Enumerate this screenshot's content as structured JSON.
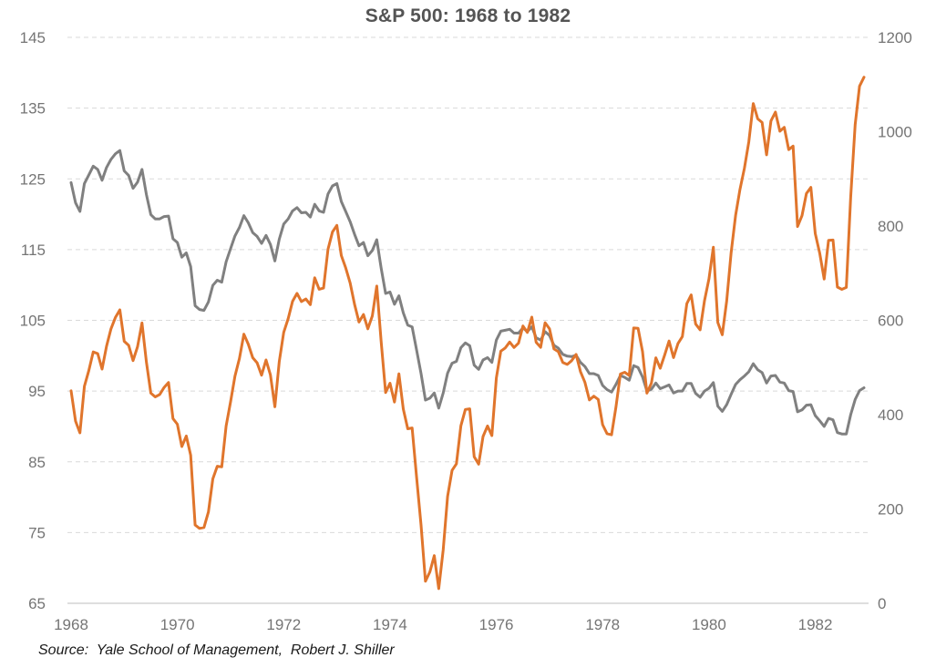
{
  "title": "S&P 500: 1968 to 1982",
  "source": "Source:  Yale School of Management,  Robert J. Shiller",
  "colors": {
    "orange_line": "#E0752C",
    "gray_line": "#808080",
    "gridline": "#D9D9D9",
    "axis_line": "#C9C9C9",
    "tick_label": "#757575",
    "title_text": "#545454",
    "source_text": "#1A1A1A",
    "background": "#FFFFFF"
  },
  "chart_data": {
    "type": "line",
    "title": "S&P 500: 1968 to 1982",
    "subtitle": "",
    "legend": "none",
    "grid": "horizontal-dashed",
    "x_start_year": 1968,
    "x_frequency": "monthly",
    "x_axis": {
      "tick_labels": [
        "1968",
        "1970",
        "1972",
        "1974",
        "1976",
        "1978",
        "1980",
        "1982"
      ],
      "tick_month_index": [
        0,
        24,
        48,
        72,
        96,
        120,
        144,
        168
      ]
    },
    "left_axis": {
      "min": 65,
      "max": 145,
      "ticks": [
        65,
        75,
        85,
        95,
        105,
        115,
        125,
        135,
        145
      ]
    },
    "right_axis": {
      "min": 0,
      "max": 1200,
      "ticks": [
        0,
        200,
        400,
        600,
        800,
        1000,
        1200
      ]
    },
    "series": [
      {
        "name": "gray-series",
        "axis": "right",
        "color_key": "gray_line",
        "values": [
          892,
          849,
          831,
          890,
          908,
          927,
          920,
          897,
          924,
          941,
          953,
          960,
          917,
          907,
          880,
          893,
          920,
          867,
          824,
          815,
          815,
          820,
          821,
          773,
          765,
          734,
          743,
          714,
          631,
          623,
          621,
          639,
          674,
          685,
          681,
          724,
          752,
          779,
          797,
          822,
          807,
          786,
          778,
          763,
          780,
          761,
          726,
          772,
          804,
          815,
          832,
          839,
          828,
          829,
          819,
          846,
          832,
          829,
          868,
          885,
          890,
          852,
          831,
          809,
          782,
          758,
          765,
          737,
          748,
          771,
          711,
          657,
          660,
          634,
          652,
          616,
          590,
          586,
          537,
          487,
          431,
          435,
          446,
          414,
          446,
          488,
          509,
          513,
          542,
          552,
          546,
          505,
          496,
          516,
          521,
          511,
          558,
          577,
          579,
          581,
          573,
          573,
          584,
          576,
          586,
          563,
          558,
          576,
          568,
          547,
          541,
          528,
          524,
          523,
          526,
          511,
          502,
          487,
          487,
          483,
          462,
          453,
          448,
          464,
          483,
          479,
          473,
          504,
          500,
          480,
          450,
          454,
          467,
          455,
          459,
          463,
          446,
          450,
          450,
          466,
          466,
          445,
          437,
          450,
          456,
          468,
          418,
          407,
          421,
          443,
          464,
          474,
          482,
          491,
          508,
          495,
          489,
          467,
          482,
          483,
          469,
          467,
          451,
          449,
          406,
          410,
          420,
          421,
          398,
          387,
          375,
          392,
          389,
          362,
          359,
          359,
          400,
          432,
          451,
          457
        ]
      },
      {
        "name": "orange-series",
        "axis": "left",
        "color_key": "orange_line",
        "values": [
          95.04,
          90.75,
          89.09,
          95.67,
          97.87,
          100.53,
          100.3,
          98.11,
          101.34,
          103.76,
          105.4,
          106.48,
          102.04,
          101.46,
          99.3,
          101.26,
          104.62,
          99.14,
          94.71,
          94.18,
          94.51,
          95.52,
          96.21,
          91.11,
          90.31,
          87.16,
          88.65,
          85.95,
          76.06,
          75.59,
          75.72,
          77.92,
          82.58,
          84.37,
          84.28,
          90.05,
          93.49,
          97.11,
          99.6,
          103.04,
          101.64,
          99.72,
          99.0,
          97.24,
          99.4,
          97.29,
          92.78,
          99.17,
          103.3,
          105.24,
          107.69,
          108.81,
          107.65,
          108.01,
          107.21,
          111.01,
          109.39,
          109.56,
          115.05,
          117.5,
          118.42,
          114.16,
          112.42,
          110.27,
          107.22,
          104.75,
          105.83,
          103.8,
          105.61,
          109.84,
          102.03,
          94.78,
          96.11,
          93.45,
          97.44,
          92.46,
          89.67,
          89.79,
          82.82,
          76.03,
          68.12,
          69.44,
          71.74,
          67.07,
          72.56,
          80.1,
          83.78,
          84.72,
          90.1,
          92.4,
          92.49,
          85.71,
          84.67,
          88.57,
          90.07,
          88.7,
          96.86,
          100.64,
          101.08,
          101.93,
          101.16,
          101.77,
          104.2,
          103.29,
          105.45,
          101.89,
          101.19,
          104.66,
          103.81,
          100.96,
          100.57,
          99.05,
          98.76,
          99.29,
          100.18,
          97.75,
          96.23,
          93.74,
          94.28,
          93.82,
          90.25,
          88.98,
          88.82,
          92.71,
          97.41,
          97.66,
          97.19,
          103.92,
          103.86,
          100.58,
          94.71,
          96.11,
          99.71,
          98.23,
          100.11,
          102.07,
          99.73,
          101.73,
          102.71,
          107.36,
          108.6,
          104.47,
          103.66,
          107.78,
          110.87,
          115.34,
          104.69,
          102.97,
          107.69,
          114.55,
          119.83,
          123.5,
          126.51,
          130.22,
          135.65,
          133.48,
          132.97,
          128.4,
          133.19,
          134.43,
          131.73,
          132.28,
          129.13,
          129.63,
          118.27,
          119.8,
          122.92,
          123.79,
          117.28,
          114.5,
          110.84,
          116.31,
          116.35,
          109.7,
          109.38,
          109.65,
          122.43,
          132.66,
          138.1,
          139.37
        ]
      }
    ]
  }
}
